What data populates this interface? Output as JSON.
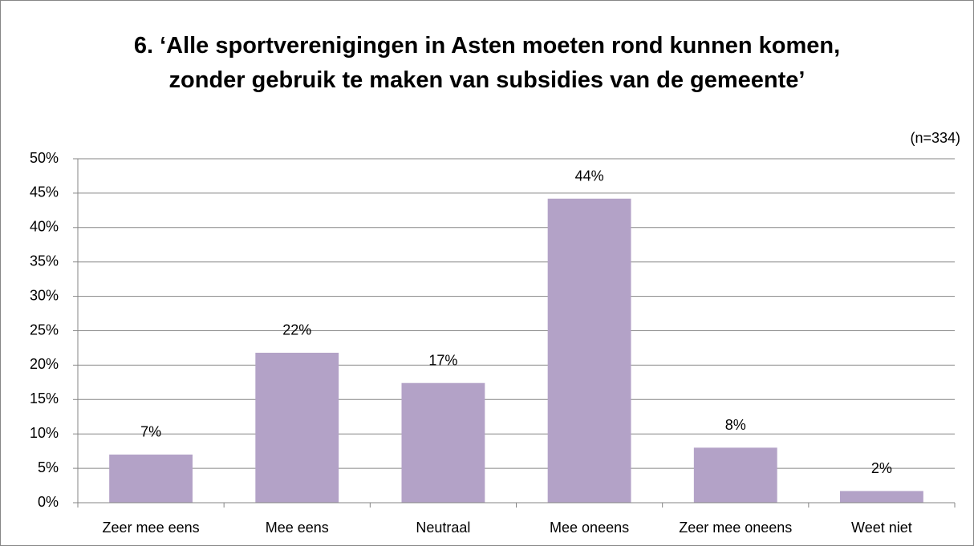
{
  "chart_data": {
    "type": "bar",
    "title": "6. ‘Alle sportverenigingen in Asten moeten rond kunnen komen, zonder gebruik te maken van subsidies van de gemeente’",
    "annotation": "(n=334)",
    "categories": [
      "Zeer mee eens",
      "Mee eens",
      "Neutraal",
      "Mee oneens",
      "Zeer mee oneens",
      "Weet niet"
    ],
    "values": [
      7,
      21.8,
      17.4,
      44.2,
      8,
      1.7
    ],
    "value_labels": [
      "7%",
      "22%",
      "17%",
      "44%",
      "8%",
      "2%"
    ],
    "color": "#b3a2c7",
    "ylim": [
      0,
      50
    ],
    "yticks": [
      {
        "value": 0,
        "label": "0%"
      },
      {
        "value": 5,
        "label": "5%"
      },
      {
        "value": 10,
        "label": "10%"
      },
      {
        "value": 15,
        "label": "15%"
      },
      {
        "value": 20,
        "label": "20%"
      },
      {
        "value": 25,
        "label": "25%"
      },
      {
        "value": 30,
        "label": "30%"
      },
      {
        "value": 35,
        "label": "35%"
      },
      {
        "value": 40,
        "label": "40%"
      },
      {
        "value": 45,
        "label": "45%"
      },
      {
        "value": 50,
        "label": "50%"
      }
    ],
    "grid": true
  }
}
